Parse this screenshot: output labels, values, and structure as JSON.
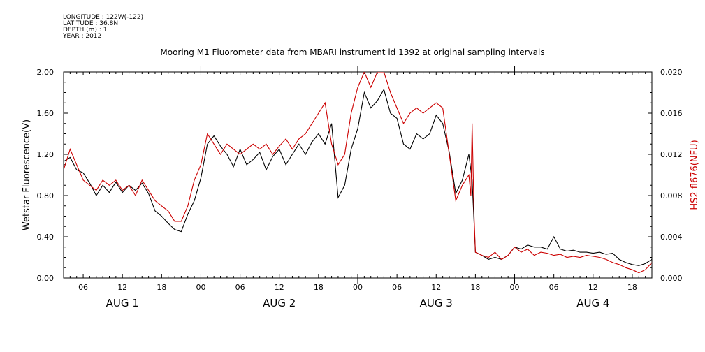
{
  "header": {
    "longitude": "LONGITUDE : 122W(-122)",
    "latitude": "LATITUDE : 36.8N",
    "depth": "DEPTH (m) : 1",
    "year": "YEAR : 2012",
    "title": "Mooring M1 Fluorometer data from MBARI instrument id 1392 at original sampling intervals"
  },
  "chart_data": {
    "type": "line",
    "x_unit": "hours since AUG 1 00:00",
    "xlim": [
      3,
      93
    ],
    "x_ticks": [
      {
        "x": 6,
        "label": "06"
      },
      {
        "x": 12,
        "label": "12"
      },
      {
        "x": 18,
        "label": "18"
      },
      {
        "x": 24,
        "label": "00"
      },
      {
        "x": 30,
        "label": "06"
      },
      {
        "x": 36,
        "label": "12"
      },
      {
        "x": 42,
        "label": "18"
      },
      {
        "x": 48,
        "label": "00"
      },
      {
        "x": 54,
        "label": "06"
      },
      {
        "x": 60,
        "label": "12"
      },
      {
        "x": 66,
        "label": "18"
      },
      {
        "x": 72,
        "label": "00"
      },
      {
        "x": 78,
        "label": "06"
      },
      {
        "x": 84,
        "label": "12"
      },
      {
        "x": 90,
        "label": "18"
      }
    ],
    "day_labels": [
      {
        "x": 12,
        "label": "AUG  1"
      },
      {
        "x": 36,
        "label": "AUG  2"
      },
      {
        "x": 60,
        "label": "AUG  3"
      },
      {
        "x": 84,
        "label": "AUG  4"
      }
    ],
    "ylim_left": [
      0,
      2
    ],
    "ylim_right": [
      0,
      0.02
    ],
    "yticks_left": [
      "0.00",
      "0.40",
      "0.80",
      "1.20",
      "1.60",
      "2.00"
    ],
    "yticks_right": [
      "0.000",
      "0.004",
      "0.008",
      "0.012",
      "0.016",
      "0.020"
    ],
    "ylabel_left": "Wetstar Fluorescence(V)",
    "ylabel_right": "HS2 fl676(NFU)",
    "grid": false,
    "series": [
      {
        "axis": "left",
        "color": "#000000",
        "x": [
          3,
          4,
          5,
          6,
          7,
          8,
          9,
          10,
          11,
          12,
          13,
          14,
          15,
          16,
          17,
          18,
          19,
          20,
          21,
          22,
          23,
          24,
          25,
          26,
          27,
          28,
          29,
          30,
          31,
          32,
          33,
          34,
          35,
          36,
          37,
          38,
          39,
          40,
          41,
          42,
          43,
          44,
          45,
          46,
          47,
          48,
          49,
          50,
          51,
          52,
          53,
          54,
          55,
          56,
          57,
          58,
          59,
          60,
          61,
          62,
          63,
          64,
          65,
          65.5,
          66,
          67,
          68,
          69,
          70,
          71,
          72,
          73,
          74,
          75,
          76,
          77,
          78,
          79,
          80,
          81,
          82,
          83,
          84,
          85,
          86,
          87,
          88,
          89,
          90,
          91,
          92,
          93
        ],
        "y": [
          1.13,
          1.17,
          1.05,
          1.02,
          0.92,
          0.8,
          0.9,
          0.83,
          0.93,
          0.83,
          0.9,
          0.85,
          0.92,
          0.82,
          0.65,
          0.6,
          0.53,
          0.47,
          0.45,
          0.62,
          0.75,
          0.97,
          1.3,
          1.38,
          1.28,
          1.2,
          1.08,
          1.25,
          1.1,
          1.15,
          1.22,
          1.05,
          1.18,
          1.25,
          1.1,
          1.2,
          1.3,
          1.2,
          1.32,
          1.4,
          1.3,
          1.5,
          0.78,
          0.9,
          1.25,
          1.45,
          1.8,
          1.65,
          1.72,
          1.83,
          1.6,
          1.55,
          1.3,
          1.25,
          1.4,
          1.35,
          1.4,
          1.58,
          1.5,
          1.22,
          0.82,
          0.95,
          1.2,
          0.95,
          0.25,
          0.22,
          0.18,
          0.2,
          0.18,
          0.22,
          0.3,
          0.28,
          0.32,
          0.3,
          0.3,
          0.28,
          0.4,
          0.28,
          0.26,
          0.27,
          0.25,
          0.25,
          0.24,
          0.25,
          0.23,
          0.24,
          0.18,
          0.15,
          0.13,
          0.12,
          0.14,
          0.18
        ]
      },
      {
        "axis": "right",
        "color": "#cc0000",
        "x": [
          3,
          4,
          5,
          6,
          7,
          8,
          9,
          10,
          11,
          12,
          13,
          14,
          15,
          16,
          17,
          18,
          19,
          20,
          21,
          22,
          23,
          24,
          25,
          26,
          27,
          28,
          29,
          30,
          31,
          32,
          33,
          34,
          35,
          36,
          37,
          38,
          39,
          40,
          41,
          42,
          43,
          44,
          45,
          46,
          47,
          48,
          49,
          50,
          51,
          52,
          53,
          54,
          55,
          56,
          57,
          58,
          59,
          60,
          61,
          62,
          63,
          64,
          65,
          65.3,
          65.5,
          65.8,
          66,
          67,
          68,
          69,
          70,
          71,
          72,
          73,
          74,
          75,
          76,
          77,
          78,
          79,
          80,
          81,
          82,
          83,
          84,
          85,
          86,
          87,
          88,
          89,
          90,
          91,
          92,
          93
        ],
        "x_note": "",
        "y": [
          0.0105,
          0.0125,
          0.011,
          0.0095,
          0.009,
          0.0085,
          0.0095,
          0.009,
          0.0095,
          0.0085,
          0.009,
          0.008,
          0.0095,
          0.0085,
          0.0075,
          0.007,
          0.0065,
          0.0055,
          0.0055,
          0.007,
          0.0095,
          0.011,
          0.014,
          0.013,
          0.012,
          0.013,
          0.0125,
          0.012,
          0.0125,
          0.013,
          0.0125,
          0.013,
          0.012,
          0.0128,
          0.0135,
          0.0125,
          0.0135,
          0.014,
          0.015,
          0.016,
          0.017,
          0.013,
          0.011,
          0.012,
          0.016,
          0.0185,
          0.02,
          0.0185,
          0.02,
          0.02,
          0.018,
          0.0165,
          0.015,
          0.016,
          0.0165,
          0.016,
          0.0165,
          0.017,
          0.0165,
          0.012,
          0.0075,
          0.009,
          0.01,
          0.008,
          0.015,
          0.006,
          0.0025,
          0.0022,
          0.002,
          0.0025,
          0.0018,
          0.0022,
          0.003,
          0.0025,
          0.0028,
          0.0022,
          0.0025,
          0.0024,
          0.0022,
          0.0023,
          0.002,
          0.0021,
          0.002,
          0.0022,
          0.0021,
          0.002,
          0.0018,
          0.0015,
          0.0013,
          0.001,
          0.0008,
          0.0005,
          0.0008,
          0.0015
        ]
      }
    ]
  }
}
